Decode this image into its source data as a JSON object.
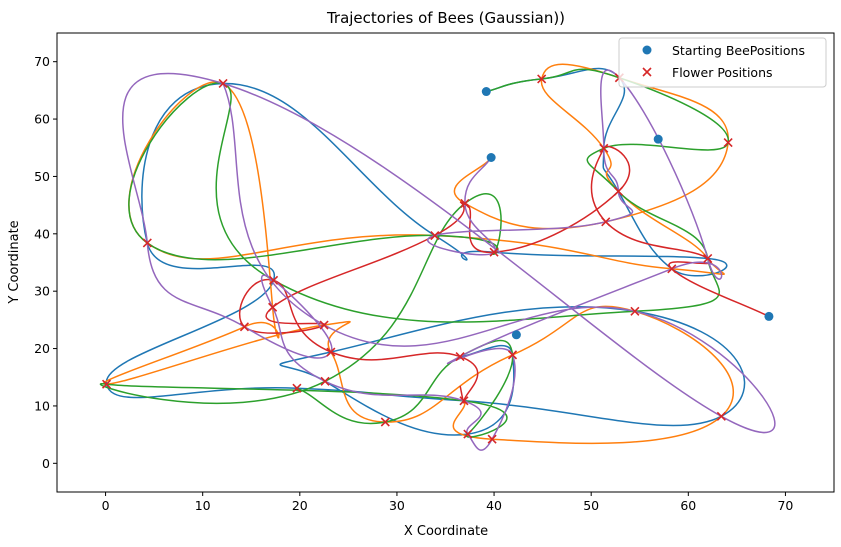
{
  "chart_data": {
    "type": "scatter",
    "title": "Trajectories of Bees (Gaussian))",
    "xlabel": "X Coordinate",
    "ylabel": "Y Coordinate",
    "xlim": [
      -5,
      75
    ],
    "ylim": [
      -5,
      75
    ],
    "xticks": [
      0,
      10,
      20,
      30,
      40,
      50,
      60,
      70
    ],
    "yticks": [
      0,
      10,
      20,
      30,
      40,
      50,
      60,
      70
    ],
    "grid": false,
    "legend_position": "upper right",
    "colors": {
      "start": "#1f77b4",
      "flower": "#d62728",
      "trajectories": [
        "#1f77b4",
        "#ff7f0e",
        "#2ca02c",
        "#d62728",
        "#9467bd"
      ]
    },
    "series": [
      {
        "name": "Starting BeePositions",
        "marker": "circle",
        "points": [
          [
            39.2,
            64.8
          ],
          [
            39.7,
            53.3
          ],
          [
            56.9,
            56.5
          ],
          [
            68.3,
            25.6
          ],
          [
            42.3,
            22.4
          ]
        ]
      },
      {
        "name": "Flower Positions",
        "marker": "x",
        "points": [
          [
            12.1,
            66.2
          ],
          [
            44.9,
            67.0
          ],
          [
            52.9,
            67.2
          ],
          [
            64.1,
            55.9
          ],
          [
            51.3,
            54.9
          ],
          [
            52.8,
            47.4
          ],
          [
            37.0,
            45.3
          ],
          [
            4.3,
            38.4
          ],
          [
            33.9,
            39.7
          ],
          [
            40.0,
            36.8
          ],
          [
            51.5,
            42.1
          ],
          [
            58.3,
            33.9
          ],
          [
            62.0,
            35.7
          ],
          [
            17.3,
            31.9
          ],
          [
            14.3,
            23.8
          ],
          [
            17.2,
            27.2
          ],
          [
            22.5,
            24.1
          ],
          [
            23.2,
            19.4
          ],
          [
            22.6,
            14.3
          ],
          [
            54.5,
            26.5
          ],
          [
            0.1,
            13.8
          ],
          [
            19.7,
            13.1
          ],
          [
            36.5,
            18.6
          ],
          [
            41.9,
            18.9
          ],
          [
            28.8,
            7.2
          ],
          [
            36.9,
            10.9
          ],
          [
            37.3,
            5.1
          ],
          [
            39.8,
            4.2
          ],
          [
            63.4,
            8.2
          ]
        ]
      }
    ],
    "trajectories": [
      {
        "color_index": 0,
        "path": [
          [
            39.2,
            64.8
          ],
          [
            44.9,
            67.0
          ],
          [
            52.9,
            67.2
          ],
          [
            51.3,
            54.9
          ],
          [
            52.8,
            47.4
          ],
          [
            58.3,
            33.9
          ],
          [
            62.0,
            35.7
          ],
          [
            40.0,
            36.8
          ],
          [
            33.9,
            39.7
          ],
          [
            12.1,
            66.2
          ],
          [
            4.3,
            38.4
          ],
          [
            17.3,
            31.9
          ],
          [
            0.1,
            13.8
          ],
          [
            19.7,
            13.1
          ],
          [
            36.9,
            10.9
          ],
          [
            63.4,
            8.2
          ],
          [
            54.5,
            26.5
          ],
          [
            23.2,
            19.4
          ],
          [
            22.6,
            14.3
          ],
          [
            37.3,
            5.1
          ],
          [
            41.9,
            18.9
          ],
          [
            36.5,
            18.6
          ]
        ]
      },
      {
        "color_index": 1,
        "path": [
          [
            39.7,
            53.3
          ],
          [
            37.0,
            45.3
          ],
          [
            51.5,
            42.1
          ],
          [
            64.1,
            55.9
          ],
          [
            52.9,
            67.2
          ],
          [
            44.9,
            67.0
          ],
          [
            51.3,
            54.9
          ],
          [
            52.8,
            47.4
          ],
          [
            62.0,
            35.7
          ],
          [
            58.3,
            33.9
          ],
          [
            33.9,
            39.7
          ],
          [
            4.3,
            38.4
          ],
          [
            12.1,
            66.2
          ],
          [
            17.2,
            27.2
          ],
          [
            14.3,
            23.8
          ],
          [
            0.1,
            13.8
          ],
          [
            22.5,
            24.1
          ],
          [
            23.2,
            19.4
          ],
          [
            28.8,
            7.2
          ],
          [
            41.9,
            18.9
          ],
          [
            54.5,
            26.5
          ],
          [
            63.4,
            8.2
          ],
          [
            39.8,
            4.2
          ],
          [
            36.9,
            10.9
          ]
        ]
      },
      {
        "color_index": 2,
        "path": [
          [
            39.2,
            64.8
          ],
          [
            44.9,
            67.0
          ],
          [
            52.9,
            67.2
          ],
          [
            64.1,
            55.9
          ],
          [
            51.3,
            54.9
          ],
          [
            52.8,
            47.4
          ],
          [
            62.0,
            35.7
          ],
          [
            54.5,
            26.5
          ],
          [
            17.3,
            31.9
          ],
          [
            12.1,
            66.2
          ],
          [
            4.3,
            38.4
          ],
          [
            33.9,
            39.7
          ],
          [
            40.0,
            36.8
          ],
          [
            37.0,
            45.3
          ],
          [
            22.6,
            14.3
          ],
          [
            0.1,
            13.8
          ],
          [
            36.9,
            10.9
          ],
          [
            37.3,
            5.1
          ],
          [
            41.9,
            18.9
          ],
          [
            36.5,
            18.6
          ],
          [
            28.8,
            7.2
          ],
          [
            19.7,
            13.1
          ]
        ]
      },
      {
        "color_index": 3,
        "path": [
          [
            68.3,
            25.6
          ],
          [
            58.3,
            33.9
          ],
          [
            62.0,
            35.7
          ],
          [
            51.5,
            42.1
          ],
          [
            51.3,
            54.9
          ],
          [
            52.8,
            47.4
          ],
          [
            40.0,
            36.8
          ],
          [
            37.0,
            45.3
          ],
          [
            33.9,
            39.7
          ],
          [
            17.2,
            27.2
          ],
          [
            22.5,
            24.1
          ],
          [
            14.3,
            23.8
          ],
          [
            17.3,
            31.9
          ],
          [
            23.2,
            19.4
          ],
          [
            36.5,
            18.6
          ],
          [
            36.9,
            10.9
          ],
          [
            36.5,
            13.5
          ]
        ]
      },
      {
        "color_index": 4,
        "path": [
          [
            39.7,
            53.3
          ],
          [
            37.0,
            45.3
          ],
          [
            40.0,
            36.8
          ],
          [
            33.9,
            39.7
          ],
          [
            51.5,
            42.1
          ],
          [
            52.8,
            47.4
          ],
          [
            51.3,
            54.9
          ],
          [
            52.9,
            67.2
          ],
          [
            62.0,
            35.7
          ],
          [
            58.3,
            33.9
          ],
          [
            36.5,
            18.6
          ],
          [
            41.9,
            18.9
          ],
          [
            39.8,
            4.2
          ],
          [
            37.3,
            5.1
          ],
          [
            36.9,
            10.9
          ],
          [
            22.6,
            14.3
          ],
          [
            17.2,
            27.2
          ],
          [
            17.3,
            31.9
          ],
          [
            23.2,
            19.4
          ],
          [
            14.3,
            23.8
          ],
          [
            4.3,
            38.4
          ],
          [
            12.1,
            66.2
          ],
          [
            63.4,
            8.2
          ],
          [
            54.5,
            26.5
          ],
          [
            22.5,
            24.1
          ],
          [
            12.1,
            66.2
          ]
        ]
      }
    ]
  }
}
